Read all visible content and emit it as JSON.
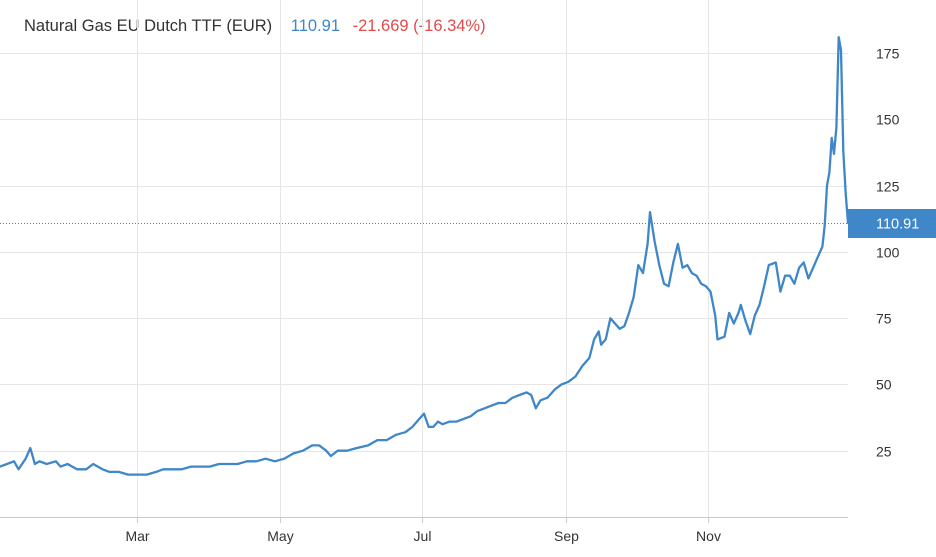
{
  "header": {
    "title": "Natural Gas EU Dutch TTF (EUR)",
    "price": "110.91",
    "change": "-21.669 (-16.34%)"
  },
  "colors": {
    "line": "#3f87c8",
    "price_text": "#3f87c8",
    "change_text": "#e04b4b",
    "price_tag_bg": "#3f87c8",
    "grid": "#e6e6e6"
  },
  "chart_data": {
    "type": "line",
    "title": "Natural Gas EU Dutch TTF (EUR)",
    "xlabel": "",
    "ylabel": "",
    "ylim": [
      0,
      195
    ],
    "xlim": [
      "2021-01-01",
      "2021-12-31"
    ],
    "grid": true,
    "legend": "none",
    "last_price_label": "110.91",
    "y_ticks": [
      {
        "value": 25,
        "label": "25"
      },
      {
        "value": 50,
        "label": "50"
      },
      {
        "value": 75,
        "label": "75"
      },
      {
        "value": 100,
        "label": "100"
      },
      {
        "value": 125,
        "label": "125"
      },
      {
        "value": 150,
        "label": "150"
      },
      {
        "value": 175,
        "label": "175"
      }
    ],
    "x_ticks": [
      {
        "date": "2021-03-01",
        "label": "Mar"
      },
      {
        "date": "2021-05-01",
        "label": "May"
      },
      {
        "date": "2021-07-01",
        "label": "Jul"
      },
      {
        "date": "2021-09-01",
        "label": "Sep"
      },
      {
        "date": "2021-11-01",
        "label": "Nov"
      }
    ],
    "series": [
      {
        "points": [
          [
            "2021-01-01",
            19
          ],
          [
            "2021-01-04",
            20
          ],
          [
            "2021-01-07",
            21
          ],
          [
            "2021-01-09",
            18
          ],
          [
            "2021-01-12",
            22
          ],
          [
            "2021-01-14",
            26
          ],
          [
            "2021-01-16",
            20
          ],
          [
            "2021-01-18",
            21
          ],
          [
            "2021-01-21",
            20
          ],
          [
            "2021-01-25",
            21
          ],
          [
            "2021-01-27",
            19
          ],
          [
            "2021-01-30",
            20
          ],
          [
            "2021-02-03",
            18
          ],
          [
            "2021-02-07",
            18
          ],
          [
            "2021-02-10",
            20
          ],
          [
            "2021-02-14",
            18
          ],
          [
            "2021-02-17",
            17
          ],
          [
            "2021-02-21",
            17
          ],
          [
            "2021-02-25",
            16
          ],
          [
            "2021-03-01",
            16
          ],
          [
            "2021-03-05",
            16
          ],
          [
            "2021-03-09",
            17
          ],
          [
            "2021-03-12",
            18
          ],
          [
            "2021-03-16",
            18
          ],
          [
            "2021-03-20",
            18
          ],
          [
            "2021-03-24",
            19
          ],
          [
            "2021-03-28",
            19
          ],
          [
            "2021-04-01",
            19
          ],
          [
            "2021-04-05",
            20
          ],
          [
            "2021-04-09",
            20
          ],
          [
            "2021-04-13",
            20
          ],
          [
            "2021-04-17",
            21
          ],
          [
            "2021-04-21",
            21
          ],
          [
            "2021-04-25",
            22
          ],
          [
            "2021-04-29",
            21
          ],
          [
            "2021-05-03",
            22
          ],
          [
            "2021-05-07",
            24
          ],
          [
            "2021-05-11",
            25
          ],
          [
            "2021-05-15",
            27
          ],
          [
            "2021-05-18",
            27
          ],
          [
            "2021-05-21",
            25
          ],
          [
            "2021-05-23",
            23
          ],
          [
            "2021-05-26",
            25
          ],
          [
            "2021-05-30",
            25
          ],
          [
            "2021-06-03",
            26
          ],
          [
            "2021-06-08",
            27
          ],
          [
            "2021-06-12",
            29
          ],
          [
            "2021-06-16",
            29
          ],
          [
            "2021-06-20",
            31
          ],
          [
            "2021-06-24",
            32
          ],
          [
            "2021-06-27",
            34
          ],
          [
            "2021-06-30",
            37
          ],
          [
            "2021-07-02",
            39
          ],
          [
            "2021-07-04",
            34
          ],
          [
            "2021-07-06",
            34
          ],
          [
            "2021-07-08",
            36
          ],
          [
            "2021-07-10",
            35
          ],
          [
            "2021-07-13",
            36
          ],
          [
            "2021-07-16",
            36
          ],
          [
            "2021-07-19",
            37
          ],
          [
            "2021-07-22",
            38
          ],
          [
            "2021-07-25",
            40
          ],
          [
            "2021-07-28",
            41
          ],
          [
            "2021-07-31",
            42
          ],
          [
            "2021-08-03",
            43
          ],
          [
            "2021-08-06",
            43
          ],
          [
            "2021-08-09",
            45
          ],
          [
            "2021-08-12",
            46
          ],
          [
            "2021-08-15",
            47
          ],
          [
            "2021-08-17",
            46
          ],
          [
            "2021-08-19",
            41
          ],
          [
            "2021-08-21",
            44
          ],
          [
            "2021-08-24",
            45
          ],
          [
            "2021-08-27",
            48
          ],
          [
            "2021-08-30",
            50
          ],
          [
            "2021-09-02",
            51
          ],
          [
            "2021-09-05",
            53
          ],
          [
            "2021-09-08",
            57
          ],
          [
            "2021-09-11",
            60
          ],
          [
            "2021-09-13",
            67
          ],
          [
            "2021-09-15",
            70
          ],
          [
            "2021-09-16",
            65
          ],
          [
            "2021-09-18",
            67
          ],
          [
            "2021-09-20",
            75
          ],
          [
            "2021-09-22",
            73
          ],
          [
            "2021-09-24",
            71
          ],
          [
            "2021-09-26",
            72
          ],
          [
            "2021-09-28",
            77
          ],
          [
            "2021-09-30",
            83
          ],
          [
            "2021-10-02",
            95
          ],
          [
            "2021-10-04",
            92
          ],
          [
            "2021-10-06",
            103
          ],
          [
            "2021-10-07",
            115
          ],
          [
            "2021-10-09",
            104
          ],
          [
            "2021-10-11",
            95
          ],
          [
            "2021-10-13",
            88
          ],
          [
            "2021-10-15",
            87
          ],
          [
            "2021-10-17",
            96
          ],
          [
            "2021-10-19",
            103
          ],
          [
            "2021-10-21",
            94
          ],
          [
            "2021-10-23",
            95
          ],
          [
            "2021-10-25",
            92
          ],
          [
            "2021-10-27",
            91
          ],
          [
            "2021-10-29",
            88
          ],
          [
            "2021-10-31",
            87
          ],
          [
            "2021-11-02",
            85
          ],
          [
            "2021-11-04",
            76
          ],
          [
            "2021-11-05",
            67
          ],
          [
            "2021-11-08",
            68
          ],
          [
            "2021-11-10",
            77
          ],
          [
            "2021-11-12",
            73
          ],
          [
            "2021-11-14",
            77
          ],
          [
            "2021-11-15",
            80
          ],
          [
            "2021-11-17",
            74
          ],
          [
            "2021-11-19",
            69
          ],
          [
            "2021-11-21",
            76
          ],
          [
            "2021-11-23",
            80
          ],
          [
            "2021-11-25",
            87
          ],
          [
            "2021-11-27",
            95
          ],
          [
            "2021-11-30",
            96
          ],
          [
            "2021-12-02",
            85
          ],
          [
            "2021-12-04",
            91
          ],
          [
            "2021-12-06",
            91
          ],
          [
            "2021-12-08",
            88
          ],
          [
            "2021-12-10",
            94
          ],
          [
            "2021-12-12",
            96
          ],
          [
            "2021-12-14",
            90
          ],
          [
            "2021-12-16",
            94
          ],
          [
            "2021-12-18",
            98
          ],
          [
            "2021-12-20",
            102
          ],
          [
            "2021-12-21",
            110
          ],
          [
            "2021-12-22",
            125
          ],
          [
            "2021-12-23",
            130
          ],
          [
            "2021-12-24",
            143
          ],
          [
            "2021-12-25",
            137
          ],
          [
            "2021-12-26",
            147
          ],
          [
            "2021-12-27",
            181
          ],
          [
            "2021-12-28",
            176
          ],
          [
            "2021-12-29",
            138
          ],
          [
            "2021-12-30",
            122
          ],
          [
            "2021-12-31",
            110.91
          ]
        ]
      }
    ]
  }
}
